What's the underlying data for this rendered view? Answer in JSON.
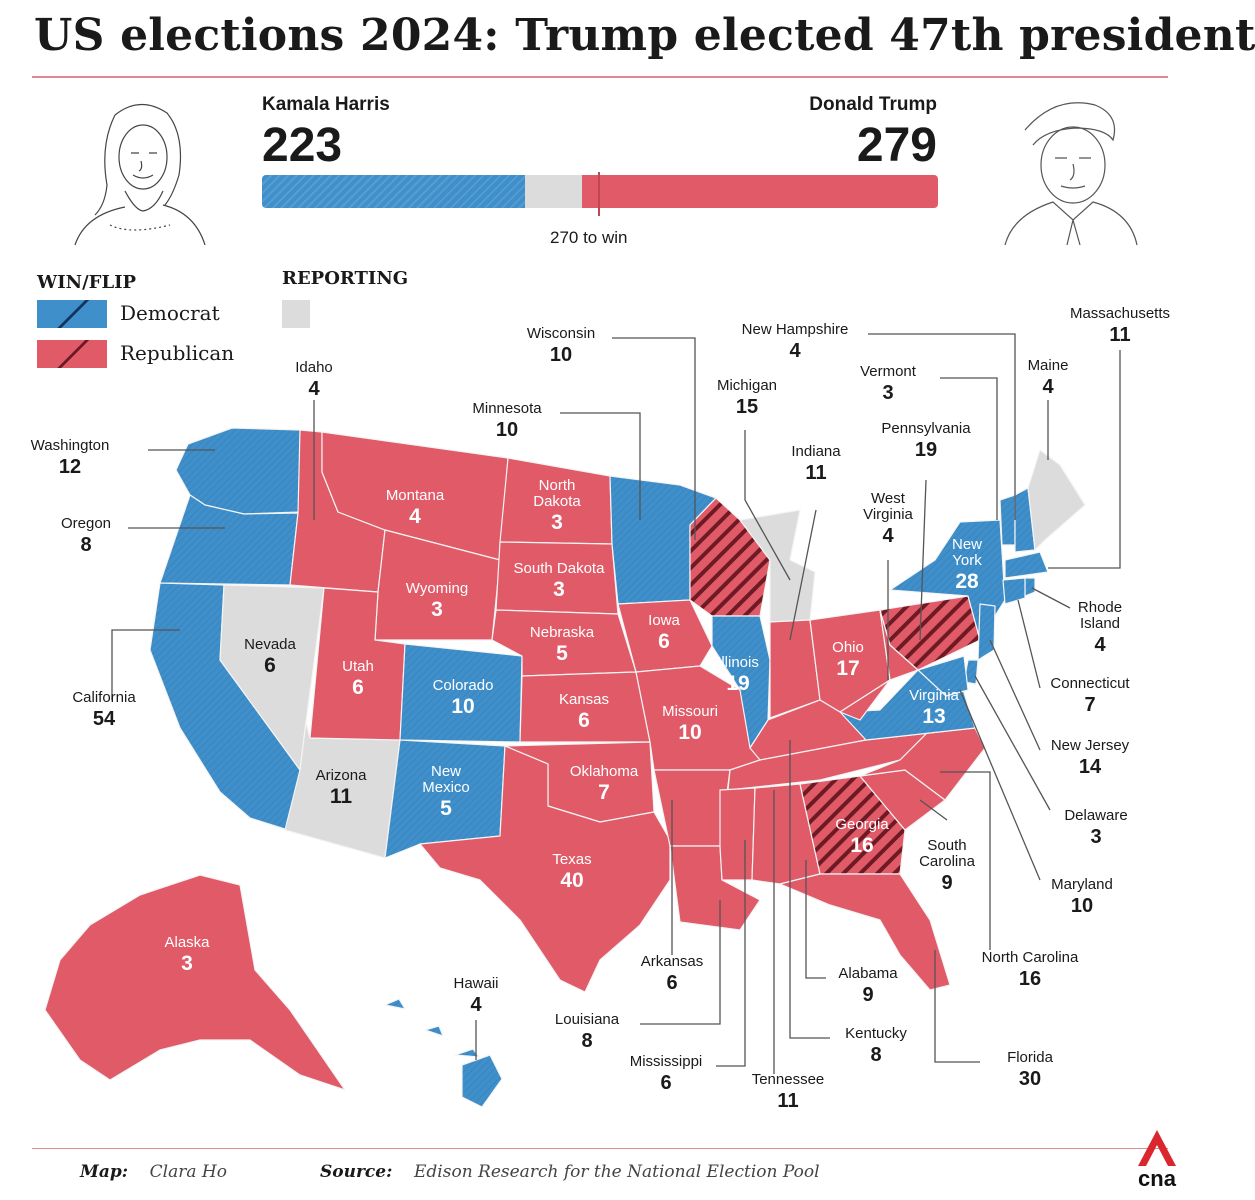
{
  "title": "US elections 2024: Trump elected 47th president",
  "tally": {
    "harris_name": "Kamala Harris",
    "harris_votes": "223",
    "trump_name": "Donald Trump",
    "trump_votes": "279",
    "threshold_label": "270 to win",
    "harris_ev": 223,
    "trump_ev": 279,
    "total_ev": 538,
    "threshold": 270
  },
  "legend": {
    "win_flip_heading": "WIN/FLIP",
    "reporting_heading": "REPORTING",
    "democrat_label": "Democrat",
    "republican_label": "Republican"
  },
  "colors": {
    "democrat": "#3f8fcb",
    "republican": "#e05a68",
    "reporting": "#dcdcdc",
    "flip_hatch_dem": "#14355f",
    "flip_hatch_rep": "#6e1a24",
    "rule": "#d98a93",
    "brand": "#d9262f"
  },
  "states": [
    {
      "name": "Washington",
      "ev": "12",
      "winner": "D"
    },
    {
      "name": "Oregon",
      "ev": "8",
      "winner": "D"
    },
    {
      "name": "California",
      "ev": "54",
      "winner": "D"
    },
    {
      "name": "Idaho",
      "ev": "4",
      "winner": "R"
    },
    {
      "name": "Nevada",
      "ev": "6",
      "winner": "reporting"
    },
    {
      "name": "Arizona",
      "ev": "11",
      "winner": "reporting"
    },
    {
      "name": "Montana",
      "ev": "4",
      "winner": "R"
    },
    {
      "name": "Wyoming",
      "ev": "3",
      "winner": "R"
    },
    {
      "name": "Utah",
      "ev": "6",
      "winner": "R"
    },
    {
      "name": "Colorado",
      "ev": "10",
      "winner": "D"
    },
    {
      "name": "New Mexico",
      "ev": "5",
      "winner": "D"
    },
    {
      "name": "North Dakota",
      "ev": "3",
      "winner": "R"
    },
    {
      "name": "South Dakota",
      "ev": "3",
      "winner": "R"
    },
    {
      "name": "Nebraska",
      "ev": "5",
      "winner": "R"
    },
    {
      "name": "Kansas",
      "ev": "6",
      "winner": "R"
    },
    {
      "name": "Oklahoma",
      "ev": "7",
      "winner": "R"
    },
    {
      "name": "Texas",
      "ev": "40",
      "winner": "R"
    },
    {
      "name": "Minnesota",
      "ev": "10",
      "winner": "D"
    },
    {
      "name": "Iowa",
      "ev": "6",
      "winner": "R"
    },
    {
      "name": "Missouri",
      "ev": "10",
      "winner": "R"
    },
    {
      "name": "Arkansas",
      "ev": "6",
      "winner": "R"
    },
    {
      "name": "Louisiana",
      "ev": "8",
      "winner": "R"
    },
    {
      "name": "Wisconsin",
      "ev": "10",
      "winner": "R",
      "flip": true
    },
    {
      "name": "Illinois",
      "ev": "19",
      "winner": "D"
    },
    {
      "name": "Michigan",
      "ev": "15",
      "winner": "reporting"
    },
    {
      "name": "Indiana",
      "ev": "11",
      "winner": "R"
    },
    {
      "name": "Ohio",
      "ev": "17",
      "winner": "R"
    },
    {
      "name": "Kentucky",
      "ev": "8",
      "winner": "R"
    },
    {
      "name": "Tennessee",
      "ev": "11",
      "winner": "R"
    },
    {
      "name": "Mississippi",
      "ev": "6",
      "winner": "R"
    },
    {
      "name": "Alabama",
      "ev": "9",
      "winner": "R"
    },
    {
      "name": "Georgia",
      "ev": "16",
      "winner": "R",
      "flip": true
    },
    {
      "name": "Florida",
      "ev": "30",
      "winner": "R"
    },
    {
      "name": "South Carolina",
      "ev": "9",
      "winner": "R"
    },
    {
      "name": "North Carolina",
      "ev": "16",
      "winner": "R"
    },
    {
      "name": "Virginia",
      "ev": "13",
      "winner": "D"
    },
    {
      "name": "West Virginia",
      "ev": "4",
      "winner": "R"
    },
    {
      "name": "Pennsylvania",
      "ev": "19",
      "winner": "R",
      "flip": true
    },
    {
      "name": "New York",
      "ev": "28",
      "winner": "D"
    },
    {
      "name": "Vermont",
      "ev": "3",
      "winner": "D"
    },
    {
      "name": "New Hampshire",
      "ev": "4",
      "winner": "D"
    },
    {
      "name": "Maine",
      "ev": "4",
      "winner": "reporting"
    },
    {
      "name": "Massachusetts",
      "ev": "11",
      "winner": "D"
    },
    {
      "name": "Rhode Island",
      "ev": "4",
      "winner": "D"
    },
    {
      "name": "Connecticut",
      "ev": "7",
      "winner": "D"
    },
    {
      "name": "New Jersey",
      "ev": "14",
      "winner": "D"
    },
    {
      "name": "Delaware",
      "ev": "3",
      "winner": "D"
    },
    {
      "name": "Maryland",
      "ev": "10",
      "winner": "D"
    },
    {
      "name": "Alaska",
      "ev": "3",
      "winner": "R"
    },
    {
      "name": "Hawaii",
      "ev": "4",
      "winner": "D"
    }
  ],
  "labels": {
    "North Dakota": [
      "North",
      "Dakota"
    ],
    "South Dakota": "South Dakota",
    "New Mexico": [
      "New",
      "Mexico"
    ],
    "New York": [
      "New",
      "York"
    ],
    "West Virginia": [
      "West",
      "Virginia"
    ],
    "South Carolina": [
      "South",
      "Carolina"
    ],
    "Rhode Island": [
      "Rhode",
      "Island"
    ]
  },
  "footer": {
    "map_key": "Map:",
    "map_credit": "Clara Ho",
    "source_key": "Source:",
    "source_text": "Edison Research for the National Election Pool"
  },
  "logo_text": "cna"
}
